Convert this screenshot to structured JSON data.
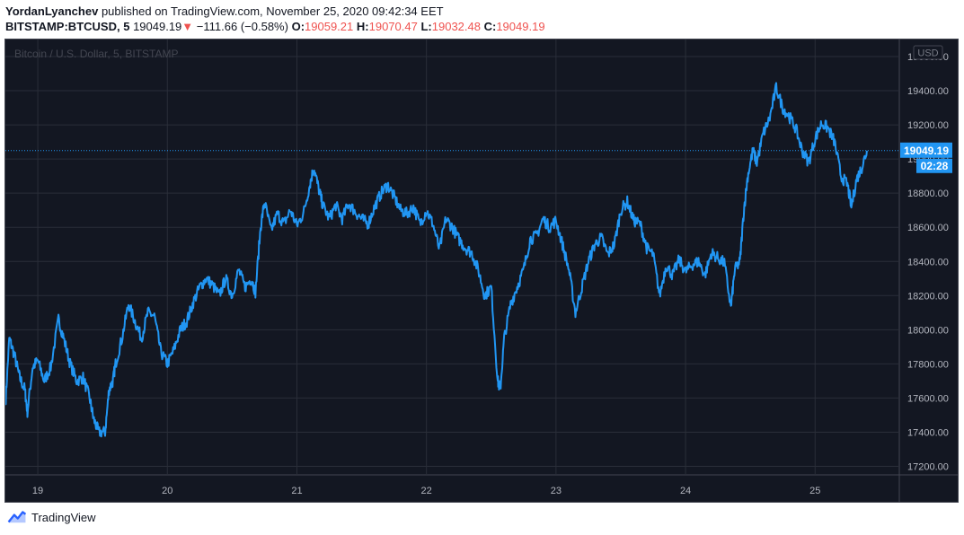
{
  "header": {
    "author": "YordanLyanchev",
    "published_text": "published on TradingView.com, November 25, 2020 09:42:34 EET",
    "symbol": "BITSTAMP:BTCUSD, 5",
    "last": "19049.19",
    "change_arrow": "▼",
    "change": "−111.66 (−0.58%)",
    "o_label": "O:",
    "o_value": "19059.21",
    "h_label": "H:",
    "h_value": "19070.47",
    "l_label": "L:",
    "l_value": "19032.48",
    "c_label": "C:",
    "c_value": "19049.19"
  },
  "footer": {
    "brand": "TradingView"
  },
  "colors": {
    "background": "#131722",
    "grid": "#2a2e39",
    "line": "#2196f3",
    "down": "#ef5350",
    "axis_text": "#b2b5be"
  },
  "chart_data": {
    "type": "line",
    "title": "Bitcoin / U.S. Dollar, 5, BITSTAMP",
    "currency_label": "USD",
    "last_price_label": "19049.19",
    "countdown_label": "02:28",
    "x_ticks": [
      "19",
      "20",
      "21",
      "22",
      "23",
      "24",
      "25"
    ],
    "y_ticks": [
      "17200.00",
      "17400.00",
      "17600.00",
      "17800.00",
      "18000.00",
      "18200.00",
      "18400.00",
      "18600.00",
      "18800.00",
      "19000.00",
      "19200.00",
      "19400.00",
      "19600.00"
    ],
    "ylim": [
      17150,
      19700
    ],
    "xlim": [
      18.75,
      25.65
    ],
    "grid": true,
    "series": [
      {
        "values": [
          [
            18.75,
            17560
          ],
          [
            18.78,
            17950
          ],
          [
            18.82,
            17850
          ],
          [
            18.86,
            17720
          ],
          [
            18.9,
            17650
          ],
          [
            18.92,
            17520
          ],
          [
            18.96,
            17780
          ],
          [
            19.0,
            17820
          ],
          [
            19.05,
            17700
          ],
          [
            19.1,
            17780
          ],
          [
            19.16,
            18060
          ],
          [
            19.2,
            17950
          ],
          [
            19.25,
            17800
          ],
          [
            19.3,
            17700
          ],
          [
            19.35,
            17720
          ],
          [
            19.4,
            17600
          ],
          [
            19.43,
            17480
          ],
          [
            19.47,
            17400
          ],
          [
            19.52,
            17400
          ],
          [
            19.55,
            17650
          ],
          [
            19.58,
            17700
          ],
          [
            19.6,
            17800
          ],
          [
            19.65,
            17950
          ],
          [
            19.7,
            18150
          ],
          [
            19.75,
            18050
          ],
          [
            19.8,
            17950
          ],
          [
            19.85,
            18100
          ],
          [
            19.9,
            18080
          ],
          [
            19.95,
            17870
          ],
          [
            20.0,
            17800
          ],
          [
            20.05,
            17880
          ],
          [
            20.1,
            18000
          ],
          [
            20.15,
            18050
          ],
          [
            20.2,
            18160
          ],
          [
            20.25,
            18250
          ],
          [
            20.3,
            18300
          ],
          [
            20.35,
            18260
          ],
          [
            20.4,
            18200
          ],
          [
            20.45,
            18300
          ],
          [
            20.5,
            18200
          ],
          [
            20.55,
            18350
          ],
          [
            20.6,
            18250
          ],
          [
            20.65,
            18300
          ],
          [
            20.68,
            18220
          ],
          [
            20.72,
            18600
          ],
          [
            20.75,
            18750
          ],
          [
            20.8,
            18580
          ],
          [
            20.85,
            18680
          ],
          [
            20.9,
            18620
          ],
          [
            20.95,
            18700
          ],
          [
            21.0,
            18610
          ],
          [
            21.05,
            18680
          ],
          [
            21.1,
            18850
          ],
          [
            21.13,
            18950
          ],
          [
            21.17,
            18820
          ],
          [
            21.2,
            18730
          ],
          [
            21.25,
            18650
          ],
          [
            21.3,
            18730
          ],
          [
            21.35,
            18650
          ],
          [
            21.4,
            18740
          ],
          [
            21.45,
            18690
          ],
          [
            21.5,
            18650
          ],
          [
            21.55,
            18620
          ],
          [
            21.6,
            18720
          ],
          [
            21.65,
            18800
          ],
          [
            21.7,
            18850
          ],
          [
            21.75,
            18780
          ],
          [
            21.8,
            18700
          ],
          [
            21.85,
            18680
          ],
          [
            21.9,
            18720
          ],
          [
            21.95,
            18620
          ],
          [
            22.0,
            18700
          ],
          [
            22.05,
            18620
          ],
          [
            22.1,
            18470
          ],
          [
            22.15,
            18650
          ],
          [
            22.2,
            18600
          ],
          [
            22.25,
            18530
          ],
          [
            22.3,
            18480
          ],
          [
            22.35,
            18450
          ],
          [
            22.4,
            18350
          ],
          [
            22.45,
            18200
          ],
          [
            22.5,
            18250
          ],
          [
            22.55,
            17700
          ],
          [
            22.57,
            17650
          ],
          [
            22.6,
            17950
          ],
          [
            22.65,
            18150
          ],
          [
            22.7,
            18250
          ],
          [
            22.75,
            18350
          ],
          [
            22.8,
            18530
          ],
          [
            22.85,
            18550
          ],
          [
            22.9,
            18650
          ],
          [
            22.95,
            18600
          ],
          [
            23.0,
            18640
          ],
          [
            23.05,
            18500
          ],
          [
            23.1,
            18350
          ],
          [
            23.15,
            18100
          ],
          [
            23.2,
            18250
          ],
          [
            23.25,
            18400
          ],
          [
            23.3,
            18500
          ],
          [
            23.35,
            18540
          ],
          [
            23.4,
            18440
          ],
          [
            23.45,
            18500
          ],
          [
            23.5,
            18700
          ],
          [
            23.55,
            18750
          ],
          [
            23.6,
            18640
          ],
          [
            23.65,
            18620
          ],
          [
            23.7,
            18480
          ],
          [
            23.75,
            18440
          ],
          [
            23.8,
            18200
          ],
          [
            23.85,
            18380
          ],
          [
            23.9,
            18320
          ],
          [
            23.95,
            18410
          ],
          [
            24.0,
            18340
          ],
          [
            24.05,
            18380
          ],
          [
            24.1,
            18400
          ],
          [
            24.15,
            18320
          ],
          [
            24.2,
            18450
          ],
          [
            24.25,
            18420
          ],
          [
            24.3,
            18390
          ],
          [
            24.35,
            18130
          ],
          [
            24.38,
            18350
          ],
          [
            24.42,
            18400
          ],
          [
            24.45,
            18700
          ],
          [
            24.48,
            18900
          ],
          [
            24.52,
            19050
          ],
          [
            24.55,
            18980
          ],
          [
            24.6,
            19150
          ],
          [
            24.65,
            19240
          ],
          [
            24.7,
            19420
          ],
          [
            24.75,
            19300
          ],
          [
            24.8,
            19250
          ],
          [
            24.85,
            19180
          ],
          [
            24.9,
            19050
          ],
          [
            24.95,
            18980
          ],
          [
            25.0,
            19120
          ],
          [
            25.05,
            19210
          ],
          [
            25.1,
            19180
          ],
          [
            25.15,
            19100
          ],
          [
            25.2,
            18900
          ],
          [
            25.25,
            18850
          ],
          [
            25.28,
            18720
          ],
          [
            25.32,
            18880
          ],
          [
            25.36,
            18950
          ],
          [
            25.4,
            19049
          ]
        ]
      }
    ]
  }
}
